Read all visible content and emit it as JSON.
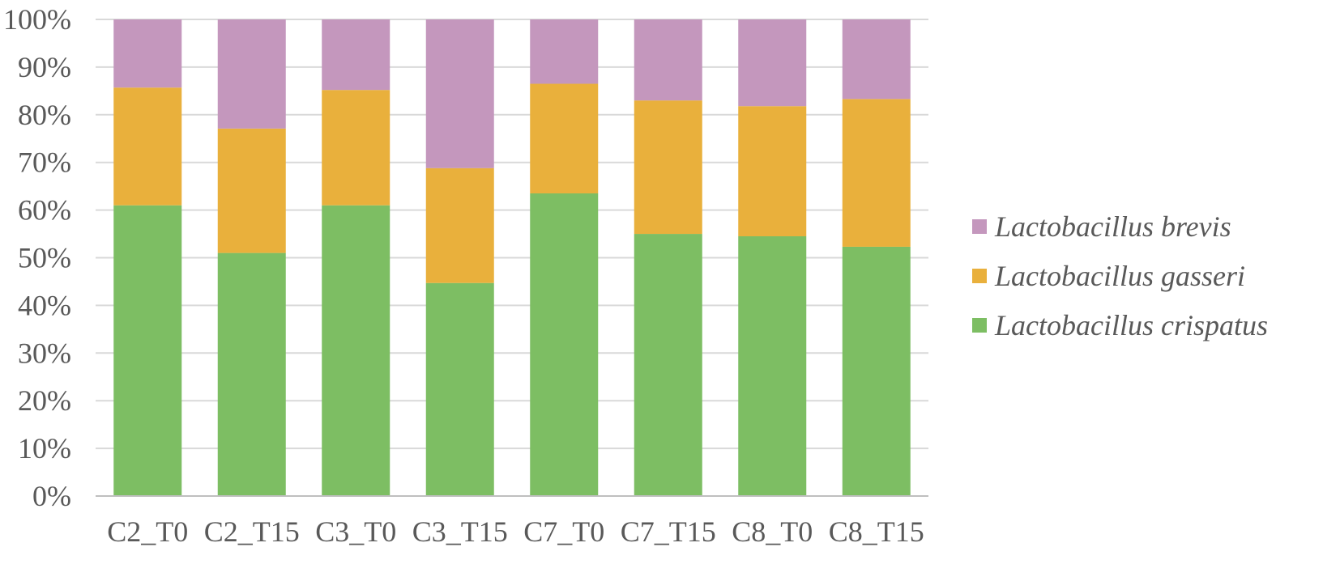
{
  "chart_data": {
    "type": "bar",
    "stacked": true,
    "normalized_percent": true,
    "title": "",
    "xlabel": "",
    "ylabel": "",
    "ylim": [
      0,
      100
    ],
    "yticks": [
      "0%",
      "10%",
      "20%",
      "30%",
      "40%",
      "50%",
      "60%",
      "70%",
      "80%",
      "90%",
      "100%"
    ],
    "grid": "horizontal",
    "legend_position": "right",
    "categories": [
      "C2_T0",
      "C2_T15",
      "C3_T0",
      "C3_T15",
      "C7_T0",
      "C7_T15",
      "C8_T0",
      "C8_T15"
    ],
    "series": [
      {
        "name": "Lactobacillus crispatus",
        "color": "#7dbe63",
        "values": [
          61,
          51,
          61,
          44.7,
          63.5,
          55,
          54.5,
          52.3
        ]
      },
      {
        "name": "Lactobacillus gasseri",
        "color": "#e9b03c",
        "values": [
          24.7,
          26.1,
          24.2,
          24.1,
          23,
          28,
          27.3,
          31
        ]
      },
      {
        "name": "Lactobacillus brevis",
        "color": "#c497bd",
        "values": [
          14.3,
          22.9,
          14.8,
          31.2,
          13.5,
          17,
          18.2,
          16.7
        ]
      }
    ],
    "legend_order": [
      "Lactobacillus brevis",
      "Lactobacillus gasseri",
      "Lactobacillus crispatus"
    ],
    "colors": {
      "grid": "#d9d9d9",
      "axis": "#bfbfbf",
      "text": "#595959"
    }
  }
}
